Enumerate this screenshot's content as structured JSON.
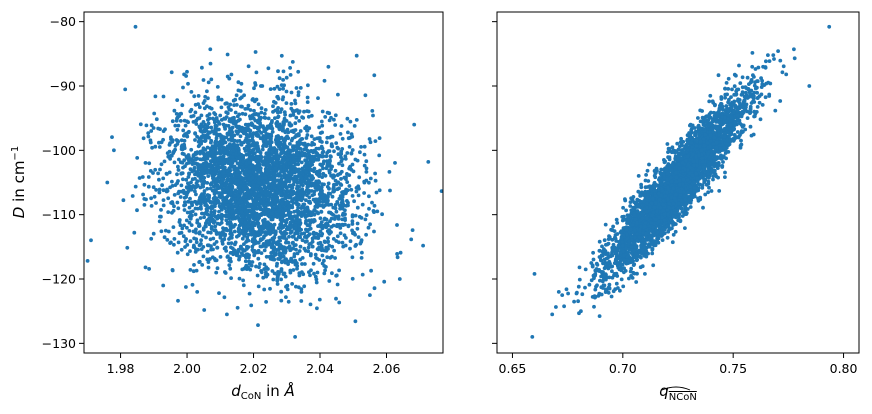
{
  "chart_data": [
    {
      "type": "scatter",
      "title": "",
      "xlabel": "d_CoN in Å",
      "ylabel": "D in cm^-1",
      "xlim": [
        1.969,
        2.077
      ],
      "ylim": [
        -131.5,
        -78.5
      ],
      "xticks": [
        "1.98",
        "2.00",
        "2.02",
        "2.04",
        "2.06"
      ],
      "yticks": [
        "−80",
        "−90",
        "−100",
        "−110",
        "−120",
        "−130"
      ],
      "grid": false,
      "legend": "none",
      "color": "#1f77b4",
      "n_points": 4000,
      "cloud": {
        "mean_x": 2.022,
        "mean_y": -105.5,
        "std_x": 0.0142,
        "std_y": 6.6,
        "correlation": -0.12
      },
      "outliers": [
        {
          "x": 1.9845,
          "y": -80.8
        },
        {
          "x": 2.007,
          "y": -84.3
        },
        {
          "x": 2.0325,
          "y": -129.0
        },
        {
          "x": 2.071,
          "y": -114.8
        },
        {
          "x": 1.976,
          "y": -105.0
        },
        {
          "x": 2.064,
          "y": -120.0
        },
        {
          "x": 1.9875,
          "y": -118.2
        },
        {
          "x": 2.012,
          "y": -125.5
        },
        {
          "x": 2.0285,
          "y": -85.3
        },
        {
          "x": 2.055,
          "y": -122.5
        },
        {
          "x": 1.978,
          "y": -100.0
        },
        {
          "x": 2.0,
          "y": -87.8
        }
      ]
    },
    {
      "type": "scatter",
      "title": "",
      "xlabel": "q_NCoN",
      "ylabel": "",
      "xlim": [
        0.643,
        0.807
      ],
      "ylim": [
        -131.5,
        -78.5
      ],
      "xticks": [
        "0.65",
        "0.70",
        "0.75",
        "0.80"
      ],
      "yticks": [],
      "shared_y": true,
      "grid": false,
      "legend": "none",
      "color": "#1f77b4",
      "n_points": 4000,
      "cloud": {
        "mean_x": 0.724,
        "mean_y": -105.5,
        "std_x": 0.0155,
        "std_y": 6.6,
        "correlation": 0.92
      },
      "outliers": [
        {
          "x": 0.7935,
          "y": -80.8
        },
        {
          "x": 0.7775,
          "y": -84.3
        },
        {
          "x": 0.7845,
          "y": -90.0
        },
        {
          "x": 0.659,
          "y": -129.0
        },
        {
          "x": 0.668,
          "y": -125.5
        },
        {
          "x": 0.66,
          "y": -119.2
        },
        {
          "x": 0.681,
          "y": -125.0
        },
        {
          "x": 0.7685,
          "y": -85.8
        },
        {
          "x": 0.774,
          "y": -88.2
        },
        {
          "x": 0.671,
          "y": -122.0
        }
      ]
    }
  ]
}
